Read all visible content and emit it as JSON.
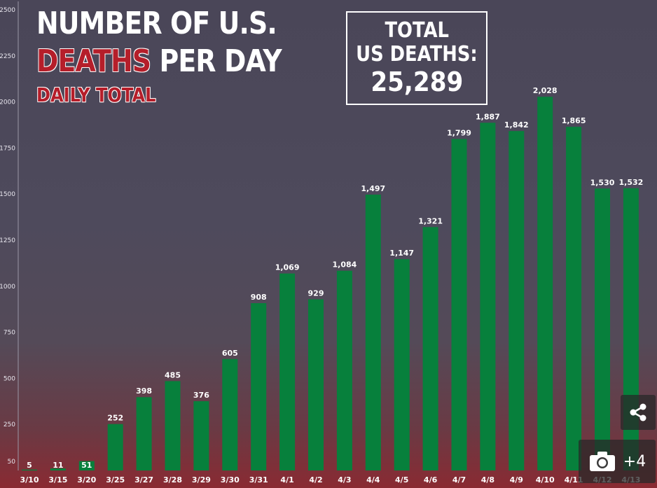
{
  "header": {
    "title_line1": "NUMBER OF U.S.",
    "title_line2_red": "DEATHS",
    "title_line2_rest": " PER DAY",
    "subtitle": "DAILY TOTAL"
  },
  "total_box": {
    "line1": "TOTAL",
    "line2": "US DEATHS:",
    "value": "25,289"
  },
  "controls": {
    "share_icon": "share-icon",
    "camera_icon": "camera-icon",
    "gallery_count": "+4"
  },
  "colors": {
    "bar": "#07803c",
    "title_red": "#b51e2a",
    "text": "#ffffff"
  },
  "chart_data": {
    "type": "bar",
    "title": "NUMBER OF U.S. DEATHS PER DAY",
    "subtitle": "DAILY TOTAL",
    "categories": [
      "3/10",
      "3/15",
      "3/20",
      "3/25",
      "3/27",
      "3/28",
      "3/29",
      "3/30",
      "3/31",
      "4/1",
      "4/2",
      "4/3",
      "4/4",
      "4/5",
      "4/6",
      "4/7",
      "4/8",
      "4/9",
      "4/10",
      "4/11",
      "4/12",
      "4/13"
    ],
    "values": [
      5,
      11,
      51,
      252,
      398,
      485,
      376,
      605,
      908,
      1069,
      929,
      1084,
      1497,
      1147,
      1321,
      1799,
      1887,
      1842,
      2028,
      1865,
      1530,
      1532
    ],
    "value_labels": [
      "5",
      "11",
      "51",
      "252",
      "398",
      "485",
      "376",
      "605",
      "908",
      "1,069",
      "929",
      "1,084",
      "1,497",
      "1,147",
      "1,321",
      "1,799",
      "1,887",
      "1,842",
      "2,028",
      "1,865",
      "1,530",
      "1,532"
    ],
    "y_ticks": [
      50,
      250,
      500,
      750,
      1000,
      1250,
      1500,
      1750,
      2000,
      2250,
      2500
    ],
    "ylim": [
      0,
      2500
    ],
    "xlabel": "",
    "ylabel": "",
    "grid": false,
    "legend": "none"
  }
}
